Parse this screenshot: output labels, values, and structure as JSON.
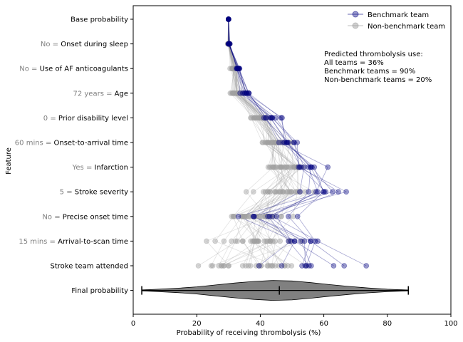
{
  "chart_data": {
    "type": "line",
    "title": "",
    "xlabel": "Probability of receiving thrombolysis (%)",
    "ylabel": "Feature",
    "xlim": [
      0,
      100
    ],
    "xticks": [
      0,
      20,
      40,
      60,
      80,
      100
    ],
    "grid": false,
    "legend_placement": "top-right",
    "features": [
      {
        "value": "",
        "name": "Base probability"
      },
      {
        "value": "No",
        "name": "Onset during sleep"
      },
      {
        "value": "No",
        "name": "Use of AF anticoagulants"
      },
      {
        "value": "72 years",
        "name": "Age"
      },
      {
        "value": "0",
        "name": "Prior disability level"
      },
      {
        "value": "60 mins",
        "name": "Onset-to-arrival time"
      },
      {
        "value": "Yes",
        "name": "Infarction"
      },
      {
        "value": "5",
        "name": "Stroke severity"
      },
      {
        "value": "No",
        "name": "Precise onset time"
      },
      {
        "value": "15 mins",
        "name": "Arrival-to-scan time"
      },
      {
        "value": "",
        "name": "Stroke team attended"
      },
      {
        "value": "",
        "name": "Final probability"
      }
    ],
    "series": [
      {
        "name": "Benchmark team",
        "color": "#00007f",
        "centers": [
          30,
          30.2,
          33,
          35,
          44,
          49,
          56,
          58,
          45,
          51,
          58
        ],
        "spread": [
          0,
          0.3,
          0.9,
          1.8,
          2.6,
          3.5,
          5.0,
          6.5,
          9.0,
          11.0,
          13.5
        ],
        "count": 10
      },
      {
        "name": "Non-benchmark team",
        "color": "#a0a0a0",
        "centers": [
          30,
          30.1,
          32,
          33,
          40,
          44,
          48,
          47,
          37,
          40,
          38
        ],
        "spread": [
          0,
          0.3,
          1.1,
          2.2,
          3.2,
          4.5,
          6.5,
          8.0,
          10.0,
          12.0,
          14.0
        ],
        "count": 30
      }
    ],
    "annotation": {
      "lines": [
        "Predicted thrombolysis use:",
        "All teams = 36%",
        "Benchmark teams = 90%",
        "Non-benchmark teams = 20%"
      ]
    },
    "final_probability": {
      "min": 2.7,
      "median": 46,
      "max": 86.6,
      "density_x": [
        2.7,
        8,
        14,
        20,
        26,
        32,
        38,
        44,
        50,
        56,
        62,
        68,
        74,
        80,
        86.6
      ],
      "density": [
        0.05,
        0.12,
        0.22,
        0.36,
        0.55,
        0.74,
        0.9,
        1.0,
        0.95,
        0.78,
        0.58,
        0.4,
        0.24,
        0.12,
        0.04
      ],
      "color": "#808080"
    }
  }
}
